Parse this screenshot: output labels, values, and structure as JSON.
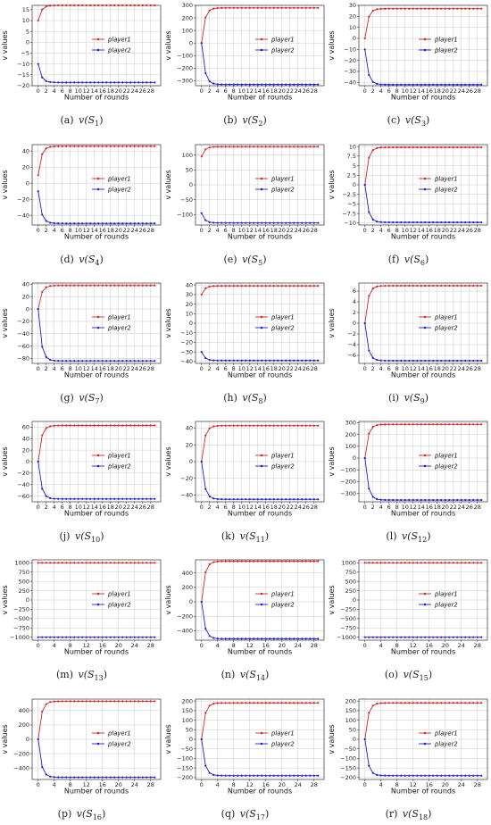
{
  "style": {
    "player1_color": "#d62728",
    "player2_color": "#1f1fd0",
    "grid_color": "#cccccc",
    "legend_placement": "right"
  },
  "chart_data": [
    {
      "type": "line",
      "caption": "(a) v(S",
      "sub": "1",
      "xlabel": "Number of rounds",
      "ylabel": "v values",
      "x": [
        0,
        1,
        2,
        3,
        4,
        5,
        6,
        7,
        8,
        9,
        10,
        11,
        12,
        13,
        14,
        15,
        16,
        17,
        18,
        19,
        20,
        21,
        22,
        23,
        24,
        25,
        26,
        27,
        28,
        29
      ],
      "xticks": [
        0,
        2,
        4,
        6,
        8,
        10,
        12,
        14,
        16,
        18,
        20,
        22,
        24,
        26,
        28
      ],
      "ylim": [
        -20,
        17
      ],
      "yticks": [
        -20,
        -15,
        -10,
        -5,
        0,
        5,
        10,
        15
      ],
      "series": [
        {
          "name": "player1",
          "start": 10,
          "final": 17
        },
        {
          "name": "player2",
          "start": -10,
          "final": -18.5
        }
      ]
    },
    {
      "type": "line",
      "caption": "(b) v(S",
      "sub": "2",
      "xlabel": "Number of rounds",
      "ylabel": "v values",
      "x": [
        0,
        1,
        2,
        3,
        4,
        5,
        6,
        7,
        8,
        9,
        10,
        11,
        12,
        13,
        14,
        15,
        16,
        17,
        18,
        19,
        20,
        21,
        22,
        23,
        24,
        25,
        26,
        27,
        28,
        29
      ],
      "xticks": [
        0,
        2,
        4,
        6,
        8,
        10,
        12,
        14,
        16,
        18,
        20,
        22,
        24,
        26,
        28
      ],
      "ylim": [
        -340,
        300
      ],
      "yticks": [
        -300,
        -200,
        -100,
        0,
        100,
        200,
        300
      ],
      "series": [
        {
          "name": "player1",
          "start": 0,
          "final": 280
        },
        {
          "name": "player2",
          "start": 0,
          "final": -330
        }
      ]
    },
    {
      "type": "line",
      "caption": "(c) v(S",
      "sub": "3",
      "xlabel": "Number of rounds",
      "ylabel": "v values",
      "x": [
        0,
        1,
        2,
        3,
        4,
        5,
        6,
        7,
        8,
        9,
        10,
        11,
        12,
        13,
        14,
        15,
        16,
        17,
        18,
        19,
        20,
        21,
        22,
        23,
        24,
        25,
        26,
        27,
        28,
        29
      ],
      "xticks": [
        0,
        2,
        4,
        6,
        8,
        10,
        12,
        14,
        16,
        18,
        20,
        22,
        24,
        26,
        28
      ],
      "ylim": [
        -43,
        30
      ],
      "yticks": [
        -40,
        -30,
        -20,
        -10,
        0,
        10,
        20,
        30
      ],
      "series": [
        {
          "name": "player1",
          "start": 0,
          "final": 27
        },
        {
          "name": "player2",
          "start": -10,
          "final": -42
        }
      ]
    },
    {
      "type": "line",
      "caption": "(d) v(S",
      "sub": "4",
      "xlabel": "Number of rounds",
      "ylabel": "v values",
      "x": [
        0,
        1,
        2,
        3,
        4,
        5,
        6,
        7,
        8,
        9,
        10,
        11,
        12,
        13,
        14,
        15,
        16,
        17,
        18,
        19,
        20,
        21,
        22,
        23,
        24,
        25,
        26,
        27,
        28,
        29
      ],
      "xticks": [
        0,
        2,
        4,
        6,
        8,
        10,
        12,
        14,
        16,
        18,
        20,
        22,
        24,
        26,
        28
      ],
      "ylim": [
        -52,
        48
      ],
      "yticks": [
        -40,
        -20,
        0,
        20,
        40
      ],
      "series": [
        {
          "name": "player1",
          "start": 10,
          "final": 46
        },
        {
          "name": "player2",
          "start": -10,
          "final": -50
        }
      ]
    },
    {
      "type": "line",
      "caption": "(e) v(S",
      "sub": "5",
      "xlabel": "Number of rounds",
      "ylabel": "v values",
      "x": [
        0,
        1,
        2,
        3,
        4,
        5,
        6,
        7,
        8,
        9,
        10,
        11,
        12,
        13,
        14,
        15,
        16,
        17,
        18,
        19,
        20,
        21,
        22,
        23,
        24,
        25,
        26,
        27,
        28,
        29
      ],
      "xticks": [
        0,
        2,
        4,
        6,
        8,
        10,
        12,
        14,
        16,
        18,
        20,
        22,
        24,
        26,
        28
      ],
      "ylim": [
        -135,
        135
      ],
      "yticks": [
        -100,
        -50,
        0,
        50,
        100
      ],
      "series": [
        {
          "name": "player1",
          "start": 95,
          "final": 128
        },
        {
          "name": "player2",
          "start": -95,
          "final": -128
        }
      ]
    },
    {
      "type": "line",
      "caption": "(f) v(S",
      "sub": "6",
      "xlabel": "Number of rounds",
      "ylabel": "v values",
      "x": [
        0,
        1,
        2,
        3,
        4,
        5,
        6,
        7,
        8,
        9,
        10,
        11,
        12,
        13,
        14,
        15,
        16,
        17,
        18,
        19,
        20,
        21,
        22,
        23,
        24,
        25,
        26,
        27,
        28,
        29
      ],
      "xticks": [
        0,
        2,
        4,
        6,
        8,
        10,
        12,
        14,
        16,
        18,
        20,
        22,
        24,
        26,
        28
      ],
      "ylim": [
        -10.5,
        10.5
      ],
      "yticks": [
        -10.0,
        -7.5,
        -5.0,
        -2.5,
        0.0,
        2.5,
        5.0,
        7.5,
        10.0
      ],
      "series": [
        {
          "name": "player1",
          "start": 0,
          "final": 9.8
        },
        {
          "name": "player2",
          "start": 0,
          "final": -9.8
        }
      ]
    },
    {
      "type": "line",
      "caption": "(g) v(S",
      "sub": "7",
      "xlabel": "Number of rounds",
      "ylabel": "v values",
      "x": [
        0,
        1,
        2,
        3,
        4,
        5,
        6,
        7,
        8,
        9,
        10,
        11,
        12,
        13,
        14,
        15,
        16,
        17,
        18,
        19,
        20,
        21,
        22,
        23,
        24,
        25,
        26,
        27,
        28,
        29
      ],
      "xticks": [
        0,
        2,
        4,
        6,
        8,
        10,
        12,
        14,
        16,
        18,
        20,
        22,
        24,
        26,
        28
      ],
      "ylim": [
        -88,
        42
      ],
      "yticks": [
        -80,
        -60,
        -40,
        -20,
        0,
        20,
        40
      ],
      "series": [
        {
          "name": "player1",
          "start": 0,
          "final": 38
        },
        {
          "name": "player2",
          "start": 0,
          "final": -84
        }
      ]
    },
    {
      "type": "line",
      "caption": "(h) v(S",
      "sub": "8",
      "xlabel": "Number of rounds",
      "ylabel": "v values",
      "x": [
        0,
        1,
        2,
        3,
        4,
        5,
        6,
        7,
        8,
        9,
        10,
        11,
        12,
        13,
        14,
        15,
        16,
        17,
        18,
        19,
        20,
        21,
        22,
        23,
        24,
        25,
        26,
        27,
        28,
        29
      ],
      "xticks": [
        0,
        2,
        4,
        6,
        8,
        10,
        12,
        14,
        16,
        18,
        20,
        22,
        24,
        26,
        28
      ],
      "ylim": [
        -42,
        42
      ],
      "yticks": [
        -40,
        -30,
        -20,
        -10,
        0,
        10,
        20,
        30,
        40
      ],
      "series": [
        {
          "name": "player1",
          "start": 30,
          "final": 39
        },
        {
          "name": "player2",
          "start": -30,
          "final": -39
        }
      ]
    },
    {
      "type": "line",
      "caption": "(i) v(S",
      "sub": "9",
      "xlabel": "Number of rounds",
      "ylabel": "v values",
      "x": [
        0,
        1,
        2,
        3,
        4,
        5,
        6,
        7,
        8,
        9,
        10,
        11,
        12,
        13,
        14,
        15,
        16,
        17,
        18,
        19,
        20,
        21,
        22,
        23,
        24,
        25,
        26,
        27,
        28,
        29
      ],
      "xticks": [
        0,
        2,
        4,
        6,
        8,
        10,
        12,
        14,
        16,
        18,
        20,
        22,
        24,
        26,
        28
      ],
      "ylim": [
        -7.5,
        7.5
      ],
      "yticks": [
        -6,
        -4,
        -2,
        0,
        2,
        4,
        6
      ],
      "series": [
        {
          "name": "player1",
          "start": 0,
          "final": 7
        },
        {
          "name": "player2",
          "start": 0,
          "final": -7
        }
      ]
    },
    {
      "type": "line",
      "caption": "(j) v(S",
      "sub": "10",
      "xlabel": "Number of rounds",
      "ylabel": "v values",
      "x": [
        0,
        1,
        2,
        3,
        4,
        5,
        6,
        7,
        8,
        9,
        10,
        11,
        12,
        13,
        14,
        15,
        16,
        17,
        18,
        19,
        20,
        21,
        22,
        23,
        24,
        25,
        26,
        27,
        28,
        29
      ],
      "xticks": [
        0,
        2,
        4,
        6,
        8,
        10,
        12,
        14,
        16,
        18,
        20,
        22,
        24,
        26,
        28
      ],
      "ylim": [
        -70,
        70
      ],
      "yticks": [
        -60,
        -40,
        -20,
        0,
        20,
        40,
        60
      ],
      "series": [
        {
          "name": "player1",
          "start": 0,
          "final": 63
        },
        {
          "name": "player2",
          "start": 0,
          "final": -65
        }
      ]
    },
    {
      "type": "line",
      "caption": "(k) v(S",
      "sub": "11",
      "xlabel": "Number of rounds",
      "ylabel": "v values",
      "x": [
        0,
        1,
        2,
        3,
        4,
        5,
        6,
        7,
        8,
        9,
        10,
        11,
        12,
        13,
        14,
        15,
        16,
        17,
        18,
        19,
        20,
        21,
        22,
        23,
        24,
        25,
        26,
        27,
        28,
        29
      ],
      "xticks": [
        0,
        2,
        4,
        6,
        8,
        10,
        12,
        14,
        16,
        18,
        20,
        22,
        24,
        26,
        28
      ],
      "ylim": [
        -48,
        48
      ],
      "yticks": [
        -40,
        -20,
        0,
        20,
        40
      ],
      "series": [
        {
          "name": "player1",
          "start": 0,
          "final": 43
        },
        {
          "name": "player2",
          "start": 0,
          "final": -45
        }
      ]
    },
    {
      "type": "line",
      "caption": "(l) v(S",
      "sub": "12",
      "xlabel": "Number of rounds",
      "ylabel": "v values",
      "x": [
        0,
        1,
        2,
        3,
        4,
        5,
        6,
        7,
        8,
        9,
        10,
        11,
        12,
        13,
        14,
        15,
        16,
        17,
        18,
        19,
        20,
        21,
        22,
        23,
        24,
        25,
        26,
        27,
        28,
        29
      ],
      "xticks": [
        0,
        2,
        4,
        6,
        8,
        10,
        12,
        14,
        16,
        18,
        20,
        22,
        24,
        26,
        28
      ],
      "ylim": [
        -370,
        310
      ],
      "yticks": [
        -300,
        -200,
        -100,
        0,
        100,
        200,
        300
      ],
      "series": [
        {
          "name": "player1",
          "start": 0,
          "final": 285
        },
        {
          "name": "player2",
          "start": 0,
          "final": -355
        }
      ]
    },
    {
      "type": "line",
      "caption": "(m) v(S",
      "sub": "13",
      "xlabel": "Number of rounds",
      "ylabel": "v values",
      "x": [
        0,
        1,
        2,
        3,
        4,
        5,
        6,
        7,
        8,
        9,
        10,
        11,
        12,
        13,
        14,
        15,
        16,
        17,
        18,
        19,
        20,
        21,
        22,
        23,
        24,
        25,
        26,
        27,
        28,
        29
      ],
      "xticks": [
        0,
        4,
        8,
        12,
        16,
        20,
        24,
        28
      ],
      "ylim": [
        -1080,
        1080
      ],
      "yticks": [
        -1000,
        -750,
        -500,
        -250,
        0,
        250,
        500,
        750,
        1000
      ],
      "series": [
        {
          "name": "player1",
          "start": 1000,
          "final": 1000
        },
        {
          "name": "player2",
          "start": -1000,
          "final": -1000
        }
      ]
    },
    {
      "type": "line",
      "caption": "(n) v(S",
      "sub": "14",
      "xlabel": "Number of rounds",
      "ylabel": "v values",
      "x": [
        0,
        1,
        2,
        3,
        4,
        5,
        6,
        7,
        8,
        9,
        10,
        11,
        12,
        13,
        14,
        15,
        16,
        17,
        18,
        19,
        20,
        21,
        22,
        23,
        24,
        25,
        26,
        27,
        28,
        29
      ],
      "xticks": [
        0,
        4,
        8,
        12,
        16,
        20,
        24,
        28
      ],
      "ylim": [
        -530,
        580
      ],
      "yticks": [
        -400,
        -200,
        0,
        200,
        400
      ],
      "series": [
        {
          "name": "player1",
          "start": 0,
          "final": 560
        },
        {
          "name": "player2",
          "start": 0,
          "final": -510
        }
      ]
    },
    {
      "type": "line",
      "caption": "(o) v(S",
      "sub": "15",
      "xlabel": "Number of rounds",
      "ylabel": "v values",
      "x": [
        0,
        1,
        2,
        3,
        4,
        5,
        6,
        7,
        8,
        9,
        10,
        11,
        12,
        13,
        14,
        15,
        16,
        17,
        18,
        19,
        20,
        21,
        22,
        23,
        24,
        25,
        26,
        27,
        28,
        29
      ],
      "xticks": [
        0,
        4,
        8,
        12,
        16,
        20,
        24,
        28
      ],
      "ylim": [
        -1080,
        1080
      ],
      "yticks": [
        -1000,
        -750,
        -500,
        -250,
        0,
        250,
        500,
        750,
        1000
      ],
      "series": [
        {
          "name": "player1",
          "start": 1000,
          "final": 1000
        },
        {
          "name": "player2",
          "start": -1000,
          "final": -1000
        }
      ]
    },
    {
      "type": "line",
      "caption": "(p) v(S",
      "sub": "16",
      "xlabel": "Number of rounds",
      "ylabel": "v values",
      "x": [
        0,
        1,
        2,
        3,
        4,
        5,
        6,
        7,
        8,
        9,
        10,
        11,
        12,
        13,
        14,
        15,
        16,
        17,
        18,
        19,
        20,
        21,
        22,
        23,
        24,
        25,
        26,
        27,
        28,
        29
      ],
      "xticks": [
        0,
        4,
        8,
        12,
        16,
        20,
        24,
        28
      ],
      "ylim": [
        -560,
        560
      ],
      "yticks": [
        -400,
        -200,
        0,
        200,
        400
      ],
      "series": [
        {
          "name": "player1",
          "start": 0,
          "final": 530
        },
        {
          "name": "player2",
          "start": 0,
          "final": -530
        }
      ]
    },
    {
      "type": "line",
      "caption": "(q) v(S",
      "sub": "17",
      "xlabel": "Number of rounds",
      "ylabel": "v values",
      "x": [
        0,
        1,
        2,
        3,
        4,
        5,
        6,
        7,
        8,
        9,
        10,
        11,
        12,
        13,
        14,
        15,
        16,
        17,
        18,
        19,
        20,
        21,
        22,
        23,
        24,
        25,
        26,
        27,
        28,
        29
      ],
      "xticks": [
        0,
        4,
        8,
        12,
        16,
        20,
        24,
        28
      ],
      "ylim": [
        -210,
        210
      ],
      "yticks": [
        -200,
        -150,
        -100,
        -50,
        0,
        50,
        100,
        150,
        200
      ],
      "series": [
        {
          "name": "player1",
          "start": 0,
          "final": 190
        },
        {
          "name": "player2",
          "start": 0,
          "final": -190
        }
      ]
    },
    {
      "type": "line",
      "caption": "(r) v(S",
      "sub": "18",
      "xlabel": "Number of rounds",
      "ylabel": "v values",
      "x": [
        0,
        1,
        2,
        3,
        4,
        5,
        6,
        7,
        8,
        9,
        10,
        11,
        12,
        13,
        14,
        15,
        16,
        17,
        18,
        19,
        20,
        21,
        22,
        23,
        24,
        25,
        26,
        27,
        28,
        29
      ],
      "xticks": [
        0,
        4,
        8,
        12,
        16,
        20,
        24,
        28
      ],
      "ylim": [
        -210,
        210
      ],
      "yticks": [
        -200,
        -150,
        -100,
        -50,
        0,
        50,
        100,
        150,
        200
      ],
      "series": [
        {
          "name": "player1",
          "start": 0,
          "final": 190
        },
        {
          "name": "player2",
          "start": 0,
          "final": -190
        }
      ]
    }
  ]
}
